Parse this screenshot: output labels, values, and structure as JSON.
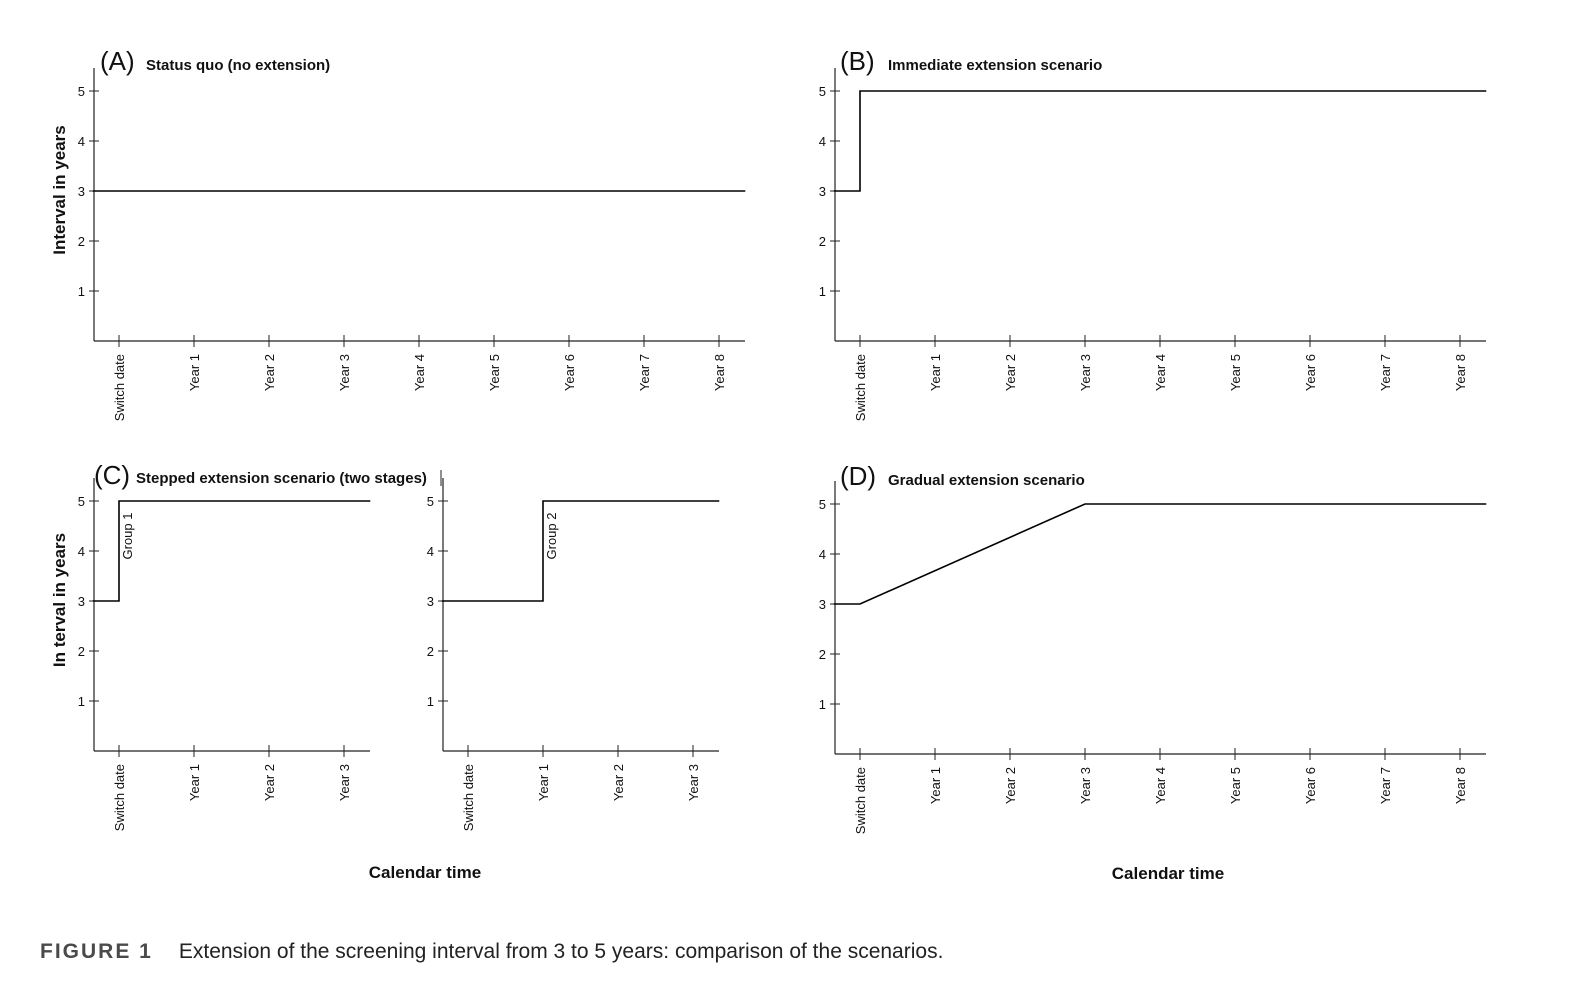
{
  "caption": {
    "label": "FIGURE 1",
    "text": "Extension of the screening interval from 3 to 5 years: comparison of the scenarios."
  },
  "colors": {
    "line": "#000000",
    "axis": "#222222"
  },
  "shared_labels": {
    "ylabel_top": "Interval in years",
    "ylabel_bottom": "In terval in years",
    "xlabel_bottom_left": "Calendar time",
    "xlabel_bottom_right": "Calendar time"
  },
  "chart_data": [
    {
      "id": "A",
      "type": "line",
      "letter": "(A)",
      "title": "Status quo (no extension)",
      "ylabel": "Interval in years",
      "xlabel": "",
      "ylim": [
        0,
        5
      ],
      "y_ticks": [
        1,
        2,
        3,
        4,
        5
      ],
      "categories": [
        "Switch date",
        "Year 1",
        "Year 2",
        "Year 3",
        "Year 4",
        "Year 5",
        "Year 6",
        "Year 7",
        "Year 8"
      ],
      "series": [
        {
          "x": [
            -0.35,
            8.35
          ],
          "y": [
            3,
            3
          ]
        }
      ],
      "grid": false,
      "annotations": []
    },
    {
      "id": "B",
      "type": "line",
      "letter": "(B)",
      "title": "Immediate extension scenario",
      "ylabel": "",
      "xlabel": "",
      "ylim": [
        0,
        5
      ],
      "y_ticks": [
        1,
        2,
        3,
        4,
        5
      ],
      "categories": [
        "Switch date",
        "Year 1",
        "Year 2",
        "Year 3",
        "Year 4",
        "Year 5",
        "Year 6",
        "Year 7",
        "Year 8"
      ],
      "series": [
        {
          "x": [
            -0.35,
            0,
            0,
            8.35
          ],
          "y": [
            3,
            3,
            5,
            5
          ]
        }
      ],
      "grid": false,
      "annotations": []
    },
    {
      "id": "C1",
      "type": "line",
      "letter": "(C)",
      "title": "Stepped extension scenario (two stages)",
      "ylabel": "In terval in years",
      "xlabel": "",
      "ylim": [
        0,
        5
      ],
      "y_ticks": [
        1,
        2,
        3,
        4,
        5
      ],
      "categories": [
        "Switch date",
        "Year 1",
        "Year 2",
        "Year 3"
      ],
      "series": [
        {
          "x": [
            -0.35,
            0,
            0,
            3.35
          ],
          "y": [
            3,
            3,
            5,
            5
          ]
        }
      ],
      "grid": false,
      "annotations": [
        {
          "text": "Group 1",
          "x": 0.17,
          "y": 4.3,
          "rotate": -90
        }
      ]
    },
    {
      "id": "C2",
      "type": "line",
      "letter": "",
      "title": "",
      "ylabel": "",
      "xlabel": "",
      "ylim": [
        0,
        5
      ],
      "y_ticks": [
        1,
        2,
        3,
        4,
        5
      ],
      "categories": [
        "Switch date",
        "Year 1",
        "Year 2",
        "Year 3"
      ],
      "series": [
        {
          "x": [
            -0.35,
            1,
            1,
            3.35
          ],
          "y": [
            3,
            3,
            5,
            5
          ]
        }
      ],
      "grid": false,
      "annotations": [
        {
          "text": "Group 2",
          "x": 1.17,
          "y": 4.3,
          "rotate": -90
        }
      ]
    },
    {
      "id": "D",
      "type": "line",
      "letter": "(D)",
      "title": "Gradual extension scenario",
      "ylabel": "",
      "xlabel": "",
      "ylim": [
        0,
        5
      ],
      "y_ticks": [
        1,
        2,
        3,
        4,
        5
      ],
      "categories": [
        "Switch date",
        "Year 1",
        "Year 2",
        "Year 3",
        "Year 4",
        "Year 5",
        "Year 6",
        "Year 7",
        "Year 8"
      ],
      "series": [
        {
          "x": [
            -0.35,
            0,
            3,
            8.35
          ],
          "y": [
            3,
            3,
            5,
            5
          ]
        }
      ],
      "grid": false,
      "annotations": []
    }
  ]
}
